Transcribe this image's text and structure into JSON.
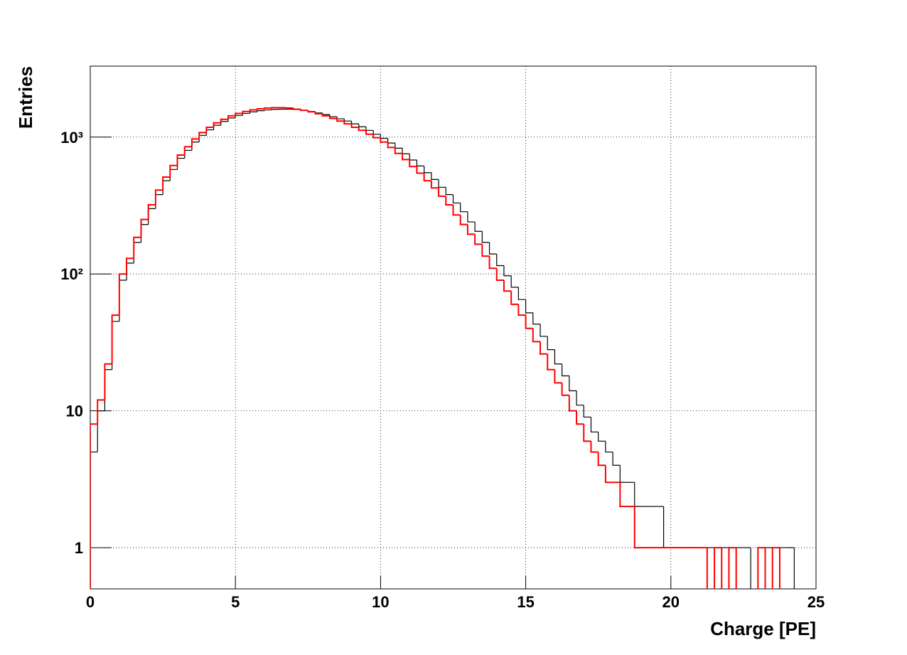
{
  "chart_data": {
    "type": "histogram",
    "xlabel": "Charge [PE]",
    "ylabel": "Entries",
    "bins": [
      0,
      0.25,
      0.5,
      0.75,
      1,
      1.25,
      1.5,
      1.75,
      2,
      2.25,
      2.5,
      2.75,
      3,
      3.25,
      3.5,
      3.75,
      4,
      4.25,
      4.5,
      4.75,
      5,
      5.25,
      5.5,
      5.75,
      6,
      6.25,
      6.5,
      6.75,
      7,
      7.25,
      7.5,
      7.75,
      8,
      8.25,
      8.5,
      8.75,
      9,
      9.25,
      9.5,
      9.75,
      10,
      10.25,
      10.5,
      10.75,
      11,
      11.25,
      11.5,
      11.75,
      12,
      12.25,
      12.5,
      12.75,
      13,
      13.25,
      13.5,
      13.75,
      14,
      14.25,
      14.5,
      14.75,
      15,
      15.25,
      15.5,
      15.75,
      16,
      16.25,
      16.5,
      16.75,
      17,
      17.25,
      17.5,
      17.75,
      18,
      18.25,
      18.5,
      18.75,
      19,
      19.25,
      19.5,
      19.75,
      20,
      20.25,
      20.5,
      20.75,
      21,
      21.25,
      21.5,
      21.75,
      22,
      22.25,
      22.5,
      22.75,
      23,
      23.25,
      23.5,
      23.75,
      24,
      24.25,
      24.5,
      24.75,
      25
    ],
    "series": [
      {
        "color": "#000000",
        "values": [
          5,
          10,
          20,
          45,
          90,
          120,
          170,
          230,
          300,
          380,
          480,
          580,
          700,
          800,
          920,
          1030,
          1130,
          1220,
          1300,
          1380,
          1440,
          1490,
          1530,
          1560,
          1580,
          1595,
          1600,
          1600,
          1590,
          1570,
          1540,
          1500,
          1460,
          1410,
          1360,
          1310,
          1250,
          1190,
          1120,
          1050,
          980,
          905,
          830,
          755,
          680,
          615,
          550,
          490,
          430,
          380,
          330,
          285,
          240,
          205,
          170,
          140,
          115,
          97,
          80,
          65,
          52,
          43,
          35,
          28,
          22,
          18,
          14,
          11,
          9,
          7,
          6,
          5,
          4,
          3,
          3,
          2,
          2,
          2,
          2,
          1,
          1,
          1,
          1,
          1,
          1,
          1,
          1,
          1,
          1,
          1,
          1,
          0,
          1,
          1,
          0,
          1,
          1,
          0,
          0,
          0
        ]
      },
      {
        "color": "#ff0000",
        "values": [
          8,
          12,
          22,
          50,
          100,
          130,
          185,
          250,
          320,
          410,
          510,
          620,
          740,
          850,
          970,
          1080,
          1180,
          1270,
          1350,
          1430,
          1490,
          1540,
          1580,
          1610,
          1630,
          1640,
          1640,
          1630,
          1600,
          1570,
          1530,
          1480,
          1430,
          1370,
          1310,
          1250,
          1180,
          1120,
          1050,
          990,
          920,
          840,
          760,
          685,
          610,
          545,
          480,
          425,
          370,
          320,
          270,
          230,
          195,
          165,
          135,
          110,
          90,
          75,
          60,
          50,
          40,
          32,
          26,
          20,
          16,
          13,
          10,
          8,
          6,
          5,
          4,
          3,
          3,
          2,
          2,
          1,
          1,
          1,
          1,
          1,
          1,
          1,
          1,
          1,
          1,
          0,
          1,
          0,
          1,
          0,
          0,
          0,
          1,
          0,
          1,
          0,
          0,
          0,
          0,
          0
        ]
      }
    ],
    "xlim": [
      0,
      25
    ],
    "xticks": [
      0,
      5,
      10,
      15,
      20,
      25
    ],
    "ylim": [
      0.5,
      3300
    ],
    "yticks": [
      1,
      10,
      {
        "value": 100,
        "label": "10²"
      },
      {
        "value": 1000,
        "label": "10³"
      }
    ],
    "log_y": true,
    "grid": true
  }
}
